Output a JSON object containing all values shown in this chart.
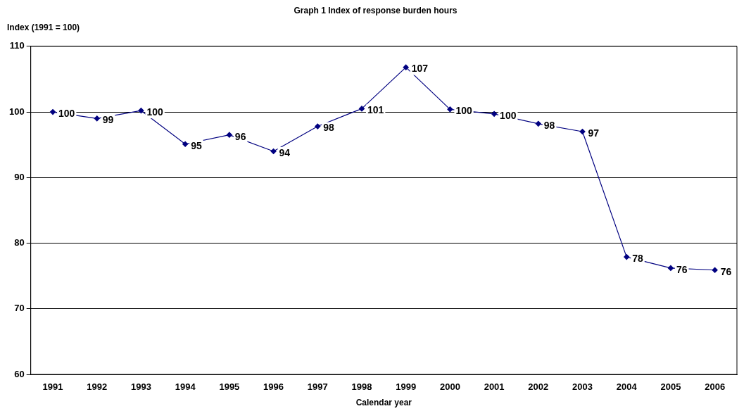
{
  "chart_data": {
    "type": "line",
    "title": "Graph 1 Index of response burden hours",
    "xlabel": "Calendar year",
    "ylabel": "Index (1991 = 100)",
    "categories": [
      "1991",
      "1992",
      "1993",
      "1994",
      "1995",
      "1996",
      "1997",
      "1998",
      "1999",
      "2000",
      "2001",
      "2002",
      "2003",
      "2004",
      "2005",
      "2006"
    ],
    "series": [
      {
        "color": "#000080",
        "values": [
          100,
          99.0,
          100.2,
          95.1,
          96.5,
          94.0,
          97.8,
          100.5,
          106.8,
          100.4,
          99.7,
          98.2,
          97.0,
          77.9,
          76.2,
          75.9
        ],
        "value_labels": [
          "100",
          "99",
          "100",
          "95",
          "96",
          "94",
          "98",
          "101",
          "107",
          "100",
          "100",
          "98",
          "97",
          "78",
          "76",
          "76"
        ]
      }
    ],
    "ylim": [
      60,
      110
    ],
    "yticks": [
      60,
      70,
      80,
      90,
      100,
      110
    ],
    "grid": "y",
    "legend": false,
    "marker": "diamond",
    "line_style": "solid"
  }
}
